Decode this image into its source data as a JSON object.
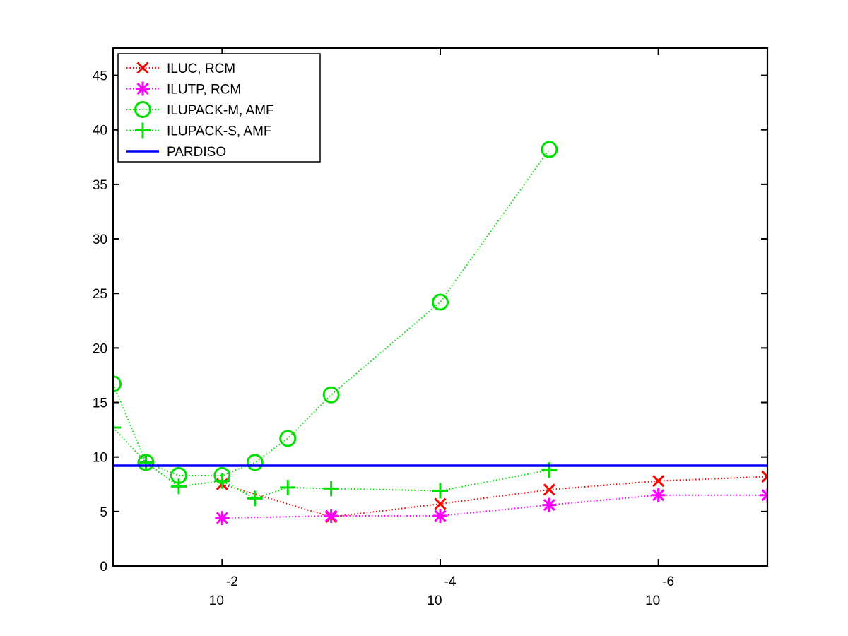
{
  "chart_data": {
    "type": "line",
    "title": "",
    "xlabel": "",
    "ylabel": "",
    "x_scale": "log",
    "x_reversed": true,
    "xlim": [
      0.1,
      1e-07
    ],
    "ylim": [
      0,
      47.5
    ],
    "yticks": [
      0,
      5,
      10,
      15,
      20,
      25,
      30,
      35,
      40,
      45
    ],
    "xticks": [
      {
        "value": 0.01,
        "base": "10",
        "exp": "-2"
      },
      {
        "value": 0.0001,
        "base": "10",
        "exp": "-4"
      },
      {
        "value": 1e-06,
        "base": "10",
        "exp": "-6"
      }
    ],
    "grid": false,
    "legend_position": "top-left",
    "series": [
      {
        "name": "ILUC, RCM",
        "color": "#ff0000",
        "marker": "x",
        "line": "dotted",
        "points": [
          [
            0.01,
            7.5
          ],
          [
            0.001,
            4.5
          ],
          [
            0.0001,
            5.7
          ],
          [
            1e-05,
            7.0
          ],
          [
            1e-06,
            7.8
          ],
          [
            1e-07,
            8.2
          ]
        ]
      },
      {
        "name": "ILUTP, RCM",
        "color": "#ff00ff",
        "marker": "asterisk",
        "line": "dotted",
        "points": [
          [
            0.01,
            4.4
          ],
          [
            0.001,
            4.6
          ],
          [
            0.0001,
            4.6
          ],
          [
            1e-05,
            5.6
          ],
          [
            1e-06,
            6.5
          ],
          [
            1e-07,
            6.5
          ]
        ]
      },
      {
        "name": "ILUPACK-M, AMF",
        "color": "#00e000",
        "marker": "circle",
        "line": "dotted",
        "points": [
          [
            0.1,
            16.7
          ],
          [
            0.05,
            9.5
          ],
          [
            0.025,
            8.3
          ],
          [
            0.01,
            8.3
          ],
          [
            0.005,
            9.5
          ],
          [
            0.0025,
            11.7
          ],
          [
            0.001,
            15.7
          ],
          [
            0.0001,
            24.2
          ],
          [
            1e-05,
            38.2
          ]
        ]
      },
      {
        "name": "ILUPACK-S, AMF",
        "color": "#00e000",
        "marker": "plus",
        "line": "dotted",
        "points": [
          [
            0.1,
            12.7
          ],
          [
            0.05,
            9.5
          ],
          [
            0.025,
            7.3
          ],
          [
            0.01,
            7.8
          ],
          [
            0.005,
            6.2
          ],
          [
            0.0025,
            7.2
          ],
          [
            0.001,
            7.1
          ],
          [
            0.0001,
            6.9
          ],
          [
            1e-05,
            8.8
          ]
        ]
      },
      {
        "name": "PARDISO",
        "color": "#0000ff",
        "marker": "none",
        "line": "solid",
        "points": [
          [
            0.1,
            9.2
          ],
          [
            1e-07,
            9.2
          ]
        ]
      }
    ]
  }
}
